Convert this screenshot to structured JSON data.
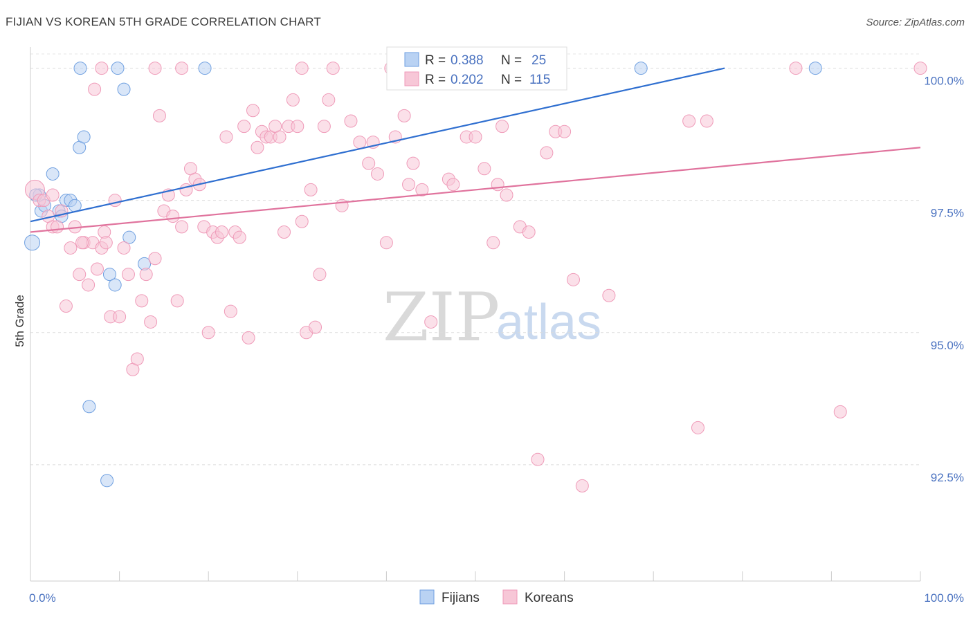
{
  "title": "FIJIAN VS KOREAN 5TH GRADE CORRELATION CHART",
  "source": "Source: ZipAtlas.com",
  "watermark": {
    "zip": "ZIP",
    "atlas": "atlas"
  },
  "chart_data": {
    "type": "scatter",
    "xlabel": "",
    "ylabel": "5th Grade",
    "xlim": [
      0,
      100
    ],
    "ylim": [
      90.3,
      100.4
    ],
    "x_tick_labels": [
      "0.0%",
      "100.0%"
    ],
    "y_ticks": [
      {
        "value": 92.5,
        "label": "92.5%"
      },
      {
        "value": 95.0,
        "label": "95.0%"
      },
      {
        "value": 97.5,
        "label": "97.5%"
      },
      {
        "value": 100.0,
        "label": "100.0%"
      }
    ],
    "grid": "horizontal dashed",
    "legend_top": {
      "placement": "top-center",
      "entries": [
        {
          "r_label": "R = ",
          "r_value": "0.388",
          "n_label": "N = ",
          "n_value": "25"
        },
        {
          "r_label": "R = ",
          "r_value": "0.202",
          "n_label": "N = ",
          "n_value": "115"
        }
      ]
    },
    "series": [
      {
        "name": "Fijians",
        "color": "#6e9fe0",
        "fill": "#b9d2f3",
        "trend_color": "#2f6fd0",
        "trend": [
          [
            0,
            97.1
          ],
          [
            78,
            100.0
          ]
        ],
        "points": [
          [
            0.2,
            96.7
          ],
          [
            1.0,
            97.6
          ],
          [
            1.2,
            97.3
          ],
          [
            1.6,
            97.4
          ],
          [
            2.5,
            98.0
          ],
          [
            3.2,
            97.3
          ],
          [
            3.5,
            97.2
          ],
          [
            4.0,
            97.5
          ],
          [
            4.5,
            97.5
          ],
          [
            5.0,
            97.4
          ],
          [
            5.5,
            98.5
          ],
          [
            5.6,
            100.0
          ],
          [
            6.0,
            98.7
          ],
          [
            6.6,
            93.6
          ],
          [
            8.6,
            92.2
          ],
          [
            8.9,
            96.1
          ],
          [
            9.5,
            95.9
          ],
          [
            9.8,
            100.0
          ],
          [
            10.5,
            99.6
          ],
          [
            11.1,
            96.8
          ],
          [
            12.8,
            96.3
          ],
          [
            19.6,
            100.0
          ],
          [
            68.6,
            100.0
          ],
          [
            88.2,
            100.0
          ],
          [
            0.6,
            97.6
          ]
        ]
      },
      {
        "name": "Koreans",
        "color": "#ef9ab8",
        "fill": "#f7c7d7",
        "trend_color": "#e0739d",
        "trend": [
          [
            0,
            96.9
          ],
          [
            100,
            98.5
          ]
        ],
        "points": [
          [
            0.5,
            97.7
          ],
          [
            1.0,
            97.5
          ],
          [
            1.5,
            97.5
          ],
          [
            2.0,
            97.2
          ],
          [
            2.5,
            97.0
          ],
          [
            3.0,
            97.0
          ],
          [
            3.5,
            97.3
          ],
          [
            4.0,
            95.5
          ],
          [
            4.5,
            96.6
          ],
          [
            5.0,
            97.0
          ],
          [
            5.5,
            96.1
          ],
          [
            6.0,
            96.7
          ],
          [
            6.5,
            95.9
          ],
          [
            7.0,
            96.7
          ],
          [
            7.5,
            96.2
          ],
          [
            8.0,
            96.6
          ],
          [
            8.3,
            96.9
          ],
          [
            8.5,
            96.7
          ],
          [
            9.0,
            95.3
          ],
          [
            9.5,
            97.5
          ],
          [
            10.0,
            95.3
          ],
          [
            10.5,
            96.6
          ],
          [
            11.0,
            96.1
          ],
          [
            11.5,
            94.3
          ],
          [
            12.0,
            94.5
          ],
          [
            12.5,
            95.6
          ],
          [
            13.0,
            96.1
          ],
          [
            13.5,
            95.2
          ],
          [
            14.0,
            96.4
          ],
          [
            14.5,
            99.1
          ],
          [
            15.0,
            97.3
          ],
          [
            15.5,
            97.6
          ],
          [
            16.0,
            97.2
          ],
          [
            16.5,
            95.6
          ],
          [
            17.0,
            97.0
          ],
          [
            17.5,
            97.7
          ],
          [
            18.0,
            98.1
          ],
          [
            18.5,
            97.9
          ],
          [
            19.0,
            97.8
          ],
          [
            19.5,
            97.0
          ],
          [
            20.0,
            95.0
          ],
          [
            20.5,
            96.9
          ],
          [
            21.0,
            96.8
          ],
          [
            21.5,
            96.9
          ],
          [
            22.0,
            98.7
          ],
          [
            22.5,
            95.4
          ],
          [
            23.0,
            96.9
          ],
          [
            23.5,
            96.8
          ],
          [
            24.0,
            98.9
          ],
          [
            24.5,
            94.9
          ],
          [
            25.0,
            99.2
          ],
          [
            25.5,
            98.5
          ],
          [
            26.0,
            98.8
          ],
          [
            26.5,
            98.7
          ],
          [
            27.0,
            98.7
          ],
          [
            27.5,
            98.9
          ],
          [
            28.0,
            98.7
          ],
          [
            28.5,
            96.9
          ],
          [
            29.0,
            98.9
          ],
          [
            29.5,
            99.4
          ],
          [
            30.0,
            98.9
          ],
          [
            30.5,
            97.1
          ],
          [
            31.0,
            95.0
          ],
          [
            31.5,
            97.7
          ],
          [
            32.0,
            95.1
          ],
          [
            32.5,
            96.1
          ],
          [
            33.0,
            98.9
          ],
          [
            33.5,
            99.4
          ],
          [
            34.0,
            100.0
          ],
          [
            35.0,
            97.4
          ],
          [
            36.0,
            99.0
          ],
          [
            37.0,
            98.6
          ],
          [
            38.0,
            98.2
          ],
          [
            38.5,
            98.6
          ],
          [
            39.0,
            98.0
          ],
          [
            40.0,
            96.7
          ],
          [
            40.5,
            100.0
          ],
          [
            41.0,
            98.7
          ],
          [
            42.0,
            99.1
          ],
          [
            42.5,
            97.8
          ],
          [
            43.0,
            98.2
          ],
          [
            44.0,
            97.7
          ],
          [
            45.0,
            95.2
          ],
          [
            45.5,
            100.0
          ],
          [
            47.0,
            97.9
          ],
          [
            47.5,
            97.8
          ],
          [
            49.0,
            98.7
          ],
          [
            50.0,
            98.7
          ],
          [
            51.0,
            98.1
          ],
          [
            52.0,
            96.7
          ],
          [
            52.5,
            97.8
          ],
          [
            53.0,
            98.9
          ],
          [
            53.5,
            97.6
          ],
          [
            55.0,
            97.0
          ],
          [
            56.0,
            96.9
          ],
          [
            57.0,
            92.6
          ],
          [
            58.0,
            98.4
          ],
          [
            59.0,
            98.8
          ],
          [
            60.0,
            98.8
          ],
          [
            61.0,
            96.0
          ],
          [
            62.0,
            92.1
          ],
          [
            65.0,
            95.7
          ],
          [
            75.0,
            93.2
          ],
          [
            74.0,
            99.0
          ],
          [
            76.0,
            99.0
          ],
          [
            86.0,
            100.0
          ],
          [
            91.0,
            93.5
          ],
          [
            100.0,
            100.0
          ],
          [
            5.8,
            96.7
          ],
          [
            7.2,
            99.6
          ],
          [
            30.5,
            100.0
          ],
          [
            17.0,
            100.0
          ],
          [
            14.0,
            100.0
          ],
          [
            8.0,
            100.0
          ],
          [
            2.5,
            97.6
          ]
        ]
      }
    ]
  }
}
